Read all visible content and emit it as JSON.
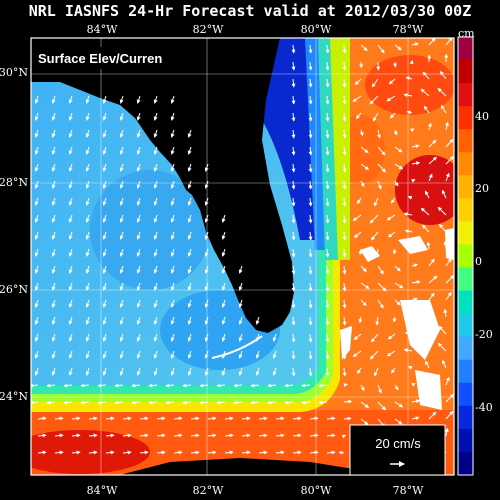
{
  "title": "NRL IASNFS 24-Hr Forecast valid at 2012/03/30 00Z",
  "panel_label": "Surface Elev/Curren",
  "lon_labels": [
    "84°W",
    "82°W",
    "80°W",
    "78°W"
  ],
  "lat_labels": [
    "30°N",
    "28°N",
    "26°N",
    "24°N"
  ],
  "colorbar": {
    "unit": "cm",
    "ticks": [
      "40",
      "20",
      "0",
      "-20",
      "-40"
    ],
    "colors": [
      "#a00040",
      "#c00000",
      "#e01010",
      "#ff3000",
      "#ff6000",
      "#ff8a00",
      "#ffb000",
      "#ffd000",
      "#f0f000",
      "#a8ff00",
      "#40ff80",
      "#00e0c0",
      "#20c8e8",
      "#40a8ff",
      "#2080ff",
      "#1050ff",
      "#0828e0",
      "#0010b0",
      "#00008a"
    ]
  },
  "scale_vector_label": "20 cm/s",
  "colors": {
    "background": "#000000",
    "land": "#000000",
    "loop_current": "#ff7a1a",
    "gulf_shelf": "#45b6f0",
    "atlantic_coast": "#0a28d0"
  }
}
